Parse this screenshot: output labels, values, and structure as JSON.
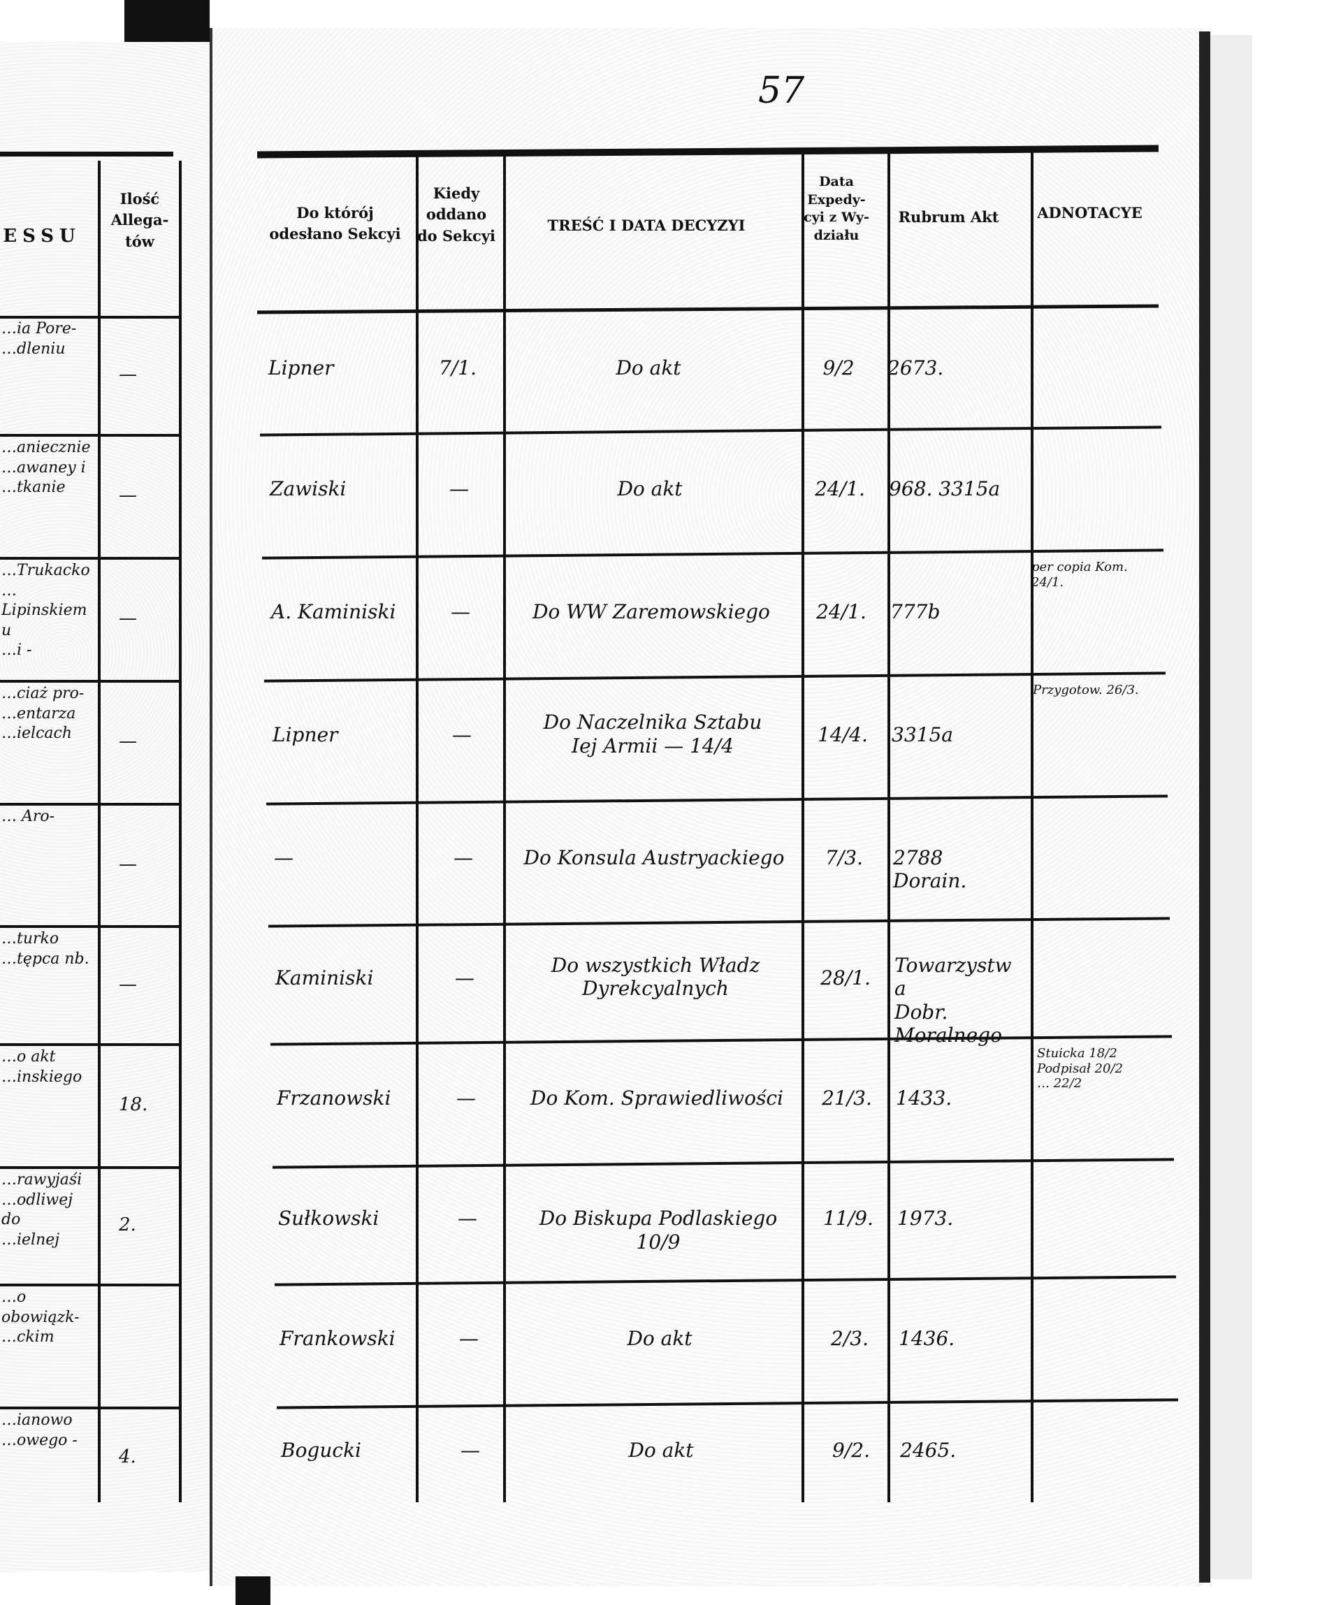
{
  "page_number": "57",
  "left_page": {
    "header_fragment": "ESSU",
    "allegaty_header": "Ilość Allega- tów",
    "rows": [
      {
        "text": "…ia Pore-\n…dleniu",
        "count": "—"
      },
      {
        "text": "…aniecznie\n…awaney i\n…tkanie",
        "count": "—"
      },
      {
        "text": "…Trukacko\n…Lipinskiemu\n…i -",
        "count": "—"
      },
      {
        "text": "…ciaż pro-\n…entarza\n…ielcach",
        "count": "—"
      },
      {
        "text": "… Aro-",
        "count": "—"
      },
      {
        "text": "…turko\n…tępca nb.",
        "count": "—"
      },
      {
        "text": "…o akt\n…inskiego",
        "count": "18."
      },
      {
        "text": "…rawyjaśi\n…odliwej do\n…ielnej",
        "count": "2."
      },
      {
        "text": "…o obowiązk-\n…ckim",
        "count": ""
      },
      {
        "text": "…ianowo\n…owego -",
        "count": "4."
      }
    ]
  },
  "table": {
    "headers": {
      "sekcja": "Do którój odesłano Sekcyi",
      "kiedy": "Kiedy oddano do Sekcyi",
      "tresc": "TREŚĆ I DATA DECYZYI",
      "data_exp": "Data Expedy- cyi z Wy- działu",
      "rubrum": "Rubrum Akt",
      "adnotacye": "ADNOTACYE"
    },
    "rows": [
      {
        "sekcja": "Lipner",
        "kiedy": "7/1.",
        "tresc": "Do akt",
        "data_exp": "9/2",
        "rubrum": "2673.",
        "adnotacye": ""
      },
      {
        "sekcja": "Zawiski",
        "kiedy": "—",
        "tresc": "Do akt",
        "data_exp": "24/1.",
        "rubrum": "968. 3315a",
        "adnotacye": ""
      },
      {
        "sekcja": "A. Kaminiski",
        "kiedy": "—",
        "tresc": "Do WW Zaremowskiego",
        "data_exp": "24/1.",
        "rubrum": "777b",
        "adnotacye": "per copia Kom. 24/1."
      },
      {
        "sekcja": "Lipner",
        "kiedy": "—",
        "tresc": "Do Naczelnika Sztabu\nIej Armii — 14/4",
        "data_exp": "14/4.",
        "rubrum": "3315a",
        "adnotacye": "Przygotow. 26/3."
      },
      {
        "sekcja": "—",
        "kiedy": "—",
        "tresc": "Do Konsula Austryackiego",
        "data_exp": "7/3.",
        "rubrum": "2788 Dorain.",
        "adnotacye": ""
      },
      {
        "sekcja": "Kaminiski",
        "kiedy": "—",
        "tresc": "Do wszystkich Władz\nDyrekcyalnych",
        "data_exp": "28/1.",
        "rubrum": "Towarzystwa\nDobr. Moralnego",
        "adnotacye": ""
      },
      {
        "sekcja": "Frzanowski",
        "kiedy": "—",
        "tresc": "Do Kom. Sprawiedliwości",
        "data_exp": "21/3.",
        "rubrum": "1433.",
        "adnotacye": "Stuicka 18/2\nPodpisał 20/2\n… 22/2"
      },
      {
        "sekcja": "Sułkowski",
        "kiedy": "—",
        "tresc": "Do Biskupa Podlaskiego 10/9",
        "data_exp": "11/9.",
        "rubrum": "1973.",
        "adnotacye": ""
      },
      {
        "sekcja": "Frankowski",
        "kiedy": "—",
        "tresc": "Do akt",
        "data_exp": "2/3.",
        "rubrum": "1436.",
        "adnotacye": ""
      },
      {
        "sekcja": "Bogucki",
        "kiedy": "—",
        "tresc": "Do akt",
        "data_exp": "9/2.",
        "rubrum": "2465.",
        "adnotacye": ""
      }
    ]
  }
}
